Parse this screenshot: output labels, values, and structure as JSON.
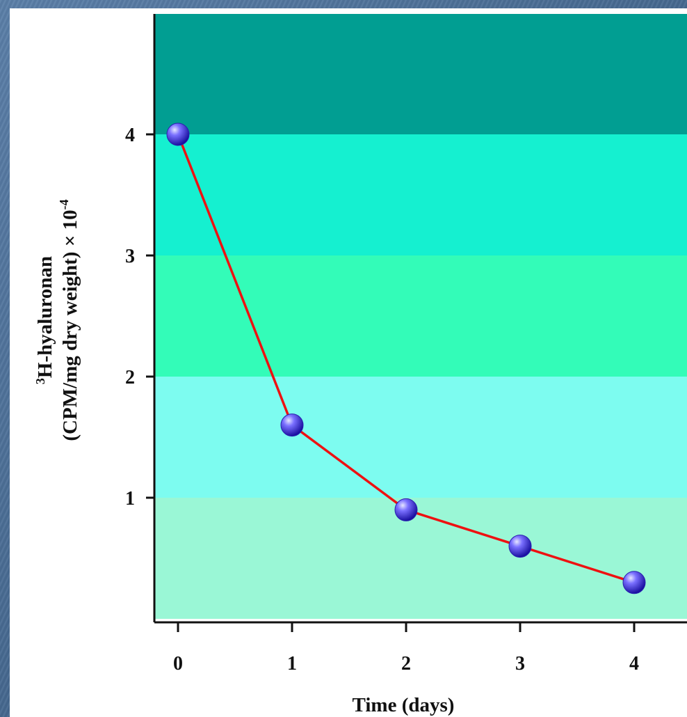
{
  "chart_data": {
    "type": "line",
    "xlabel": "Time (days)",
    "ylabel_line1_sup": "3",
    "ylabel_line1": "H-hyaluronan",
    "ylabel_line2": "(CPM/mg dry weight) × 10",
    "ylabel_line2_sup": "-4",
    "x": [
      0,
      1,
      2,
      3,
      4
    ],
    "series": [
      {
        "values": [
          4.0,
          1.6,
          0.9,
          0.6,
          0.3
        ]
      }
    ],
    "xticks": [
      "0",
      "1",
      "2",
      "3",
      "4"
    ],
    "yticks": [
      "1",
      "2",
      "3",
      "4"
    ],
    "ylim": [
      0,
      5
    ],
    "grid": false,
    "bands": [
      {
        "from": 0,
        "to": 1,
        "color": "#9af7d6"
      },
      {
        "from": 1,
        "to": 2,
        "color": "#7dfcf0"
      },
      {
        "from": 2,
        "to": 3,
        "color": "#33fcb8"
      },
      {
        "from": 3,
        "to": 4,
        "color": "#15f0d0"
      },
      {
        "from": 4,
        "to": 5,
        "color": "#019e92"
      }
    ],
    "line_color": "#ee1111",
    "marker_color": "#4a3fe0"
  }
}
